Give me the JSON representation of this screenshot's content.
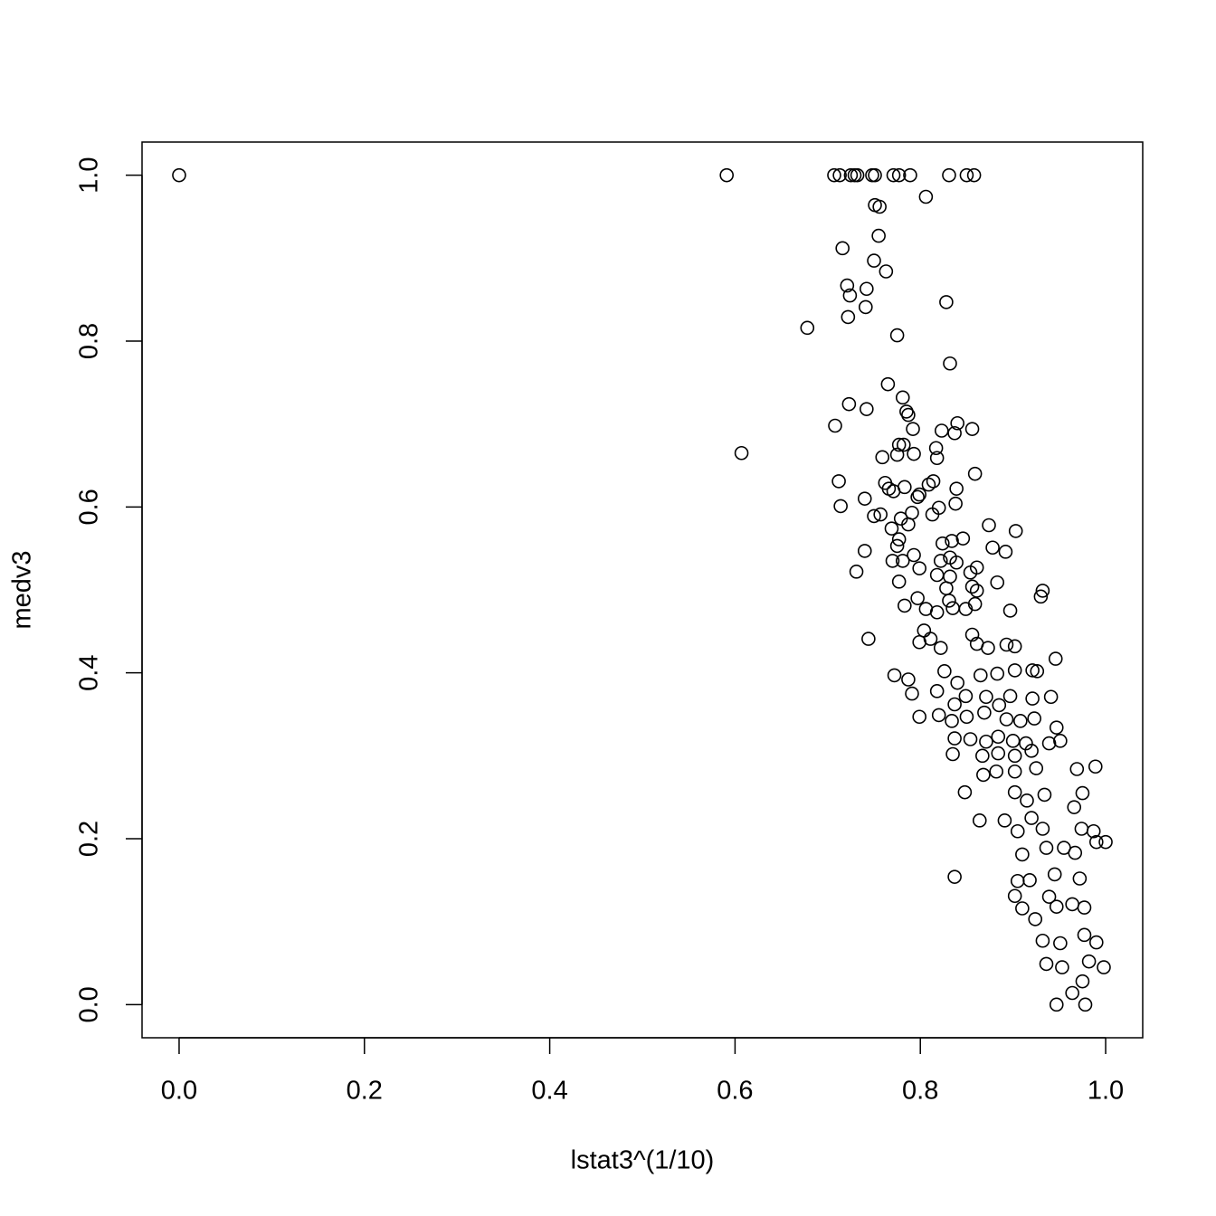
{
  "chart_data": {
    "type": "scatter",
    "x_label": "lstat3^(1/10)",
    "y_label": "medv3",
    "xlim": [
      -0.04,
      1.04
    ],
    "ylim": [
      -0.04,
      1.04
    ],
    "xticks": [
      {
        "value": 0,
        "label": "0.0"
      },
      0.2,
      0.4,
      0.6,
      0.8,
      {
        "value": 1,
        "label": "1.0"
      }
    ],
    "yticks": [
      {
        "value": 0,
        "label": "0.0"
      },
      0.2,
      0.4,
      0.6,
      0.8,
      {
        "value": 1,
        "label": "1.0"
      }
    ],
    "color": "#000000",
    "x": [
      0,
      0.591,
      0.707,
      0.713,
      0.725,
      0.729,
      0.732,
      0.748,
      0.751,
      0.771,
      0.777,
      0.789,
      0.831,
      0.85,
      0.858,
      0.806,
      0.751,
      0.756,
      0.755,
      0.716,
      0.75,
      0.763,
      0.721,
      0.724,
      0.742,
      0.828,
      0.741,
      0.722,
      0.678,
      0.775,
      0.832,
      0.765,
      0.781,
      0.723,
      0.742,
      0.785,
      0.787,
      0.84,
      0.856,
      0.837,
      0.708,
      0.792,
      0.823,
      0.777,
      0.782,
      0.817,
      0.607,
      0.775,
      0.793,
      0.759,
      0.818,
      0.859,
      0.814,
      0.809,
      0.762,
      0.712,
      0.839,
      0.766,
      0.771,
      0.783,
      0.799,
      0.797,
      0.838,
      0.74,
      0.714,
      0.82,
      0.791,
      0.813,
      0.75,
      0.757,
      0.779,
      0.874,
      0.903,
      0.787,
      0.769,
      0.834,
      0.824,
      0.846,
      0.775,
      0.777,
      0.878,
      0.892,
      0.74,
      0.793,
      0.832,
      0.822,
      0.839,
      0.77,
      0.781,
      0.861,
      0.854,
      0.799,
      0.818,
      0.832,
      0.731,
      0.883,
      0.777,
      0.856,
      0.932,
      0.93,
      0.828,
      0.861,
      0.831,
      0.859,
      0.797,
      0.835,
      0.818,
      0.849,
      0.897,
      0.783,
      0.806,
      0.744,
      0.946,
      0.804,
      0.799,
      0.811,
      0.822,
      0.856,
      0.861,
      0.873,
      0.893,
      0.902,
      0.772,
      0.787,
      0.826,
      0.84,
      0.865,
      0.883,
      0.902,
      0.921,
      0.926,
      0.791,
      0.818,
      0.837,
      0.849,
      0.871,
      0.885,
      0.897,
      0.941,
      0.921,
      0.799,
      0.82,
      0.834,
      0.85,
      0.869,
      0.893,
      0.908,
      0.923,
      0.947,
      0.837,
      0.854,
      0.871,
      0.884,
      0.9,
      0.914,
      0.939,
      0.951,
      0.835,
      0.867,
      0.884,
      0.902,
      0.92,
      0.868,
      0.882,
      0.902,
      0.925,
      0.969,
      0.989,
      0.902,
      0.915,
      0.934,
      0.848,
      0.975,
      0.966,
      0.864,
      0.891,
      0.905,
      0.92,
      0.932,
      0.974,
      0.987,
      0.99,
      1.0,
      0.91,
      0.936,
      0.955,
      0.967,
      0.837,
      0.905,
      0.918,
      0.945,
      0.972,
      0.902,
      0.939,
      0.91,
      0.947,
      0.964,
      0.977,
      0.924,
      0.932,
      0.951,
      0.977,
      0.99,
      0.936,
      0.953,
      0.982,
      0.998,
      0.975,
      0.964,
      0.947,
      0.978
    ],
    "y": [
      1,
      1,
      1,
      1,
      1,
      1,
      1,
      1,
      1,
      1,
      1,
      1,
      1,
      1,
      1,
      0.974,
      0.964,
      0.962,
      0.927,
      0.912,
      0.897,
      0.884,
      0.867,
      0.855,
      0.863,
      0.847,
      0.841,
      0.829,
      0.816,
      0.807,
      0.773,
      0.748,
      0.732,
      0.724,
      0.718,
      0.715,
      0.711,
      0.701,
      0.694,
      0.689,
      0.698,
      0.694,
      0.692,
      0.675,
      0.675,
      0.671,
      0.665,
      0.663,
      0.664,
      0.66,
      0.659,
      0.64,
      0.631,
      0.627,
      0.629,
      0.631,
      0.622,
      0.622,
      0.619,
      0.624,
      0.615,
      0.612,
      0.604,
      0.61,
      0.601,
      0.599,
      0.593,
      0.591,
      0.589,
      0.591,
      0.586,
      0.578,
      0.571,
      0.579,
      0.574,
      0.559,
      0.556,
      0.562,
      0.553,
      0.561,
      0.551,
      0.546,
      0.547,
      0.542,
      0.539,
      0.535,
      0.533,
      0.535,
      0.535,
      0.527,
      0.521,
      0.526,
      0.518,
      0.516,
      0.522,
      0.509,
      0.51,
      0.504,
      0.499,
      0.492,
      0.502,
      0.499,
      0.487,
      0.483,
      0.49,
      0.478,
      0.473,
      0.477,
      0.475,
      0.481,
      0.477,
      0.441,
      0.417,
      0.451,
      0.437,
      0.441,
      0.43,
      0.446,
      0.435,
      0.43,
      0.434,
      0.432,
      0.397,
      0.392,
      0.402,
      0.388,
      0.397,
      0.399,
      0.403,
      0.403,
      0.402,
      0.375,
      0.378,
      0.362,
      0.372,
      0.371,
      0.361,
      0.372,
      0.371,
      0.369,
      0.347,
      0.349,
      0.342,
      0.347,
      0.352,
      0.344,
      0.342,
      0.345,
      0.334,
      0.321,
      0.32,
      0.317,
      0.323,
      0.318,
      0.315,
      0.315,
      0.318,
      0.302,
      0.3,
      0.303,
      0.3,
      0.306,
      0.277,
      0.281,
      0.281,
      0.285,
      0.284,
      0.287,
      0.256,
      0.246,
      0.253,
      0.256,
      0.255,
      0.238,
      0.222,
      0.222,
      0.209,
      0.225,
      0.212,
      0.212,
      0.209,
      0.196,
      0.196,
      0.181,
      0.189,
      0.189,
      0.183,
      0.154,
      0.149,
      0.15,
      0.157,
      0.152,
      0.131,
      0.13,
      0.116,
      0.118,
      0.121,
      0.117,
      0.103,
      0.077,
      0.074,
      0.084,
      0.075,
      0.049,
      0.045,
      0.052,
      0.045,
      0.028,
      0.014,
      0,
      0
    ]
  }
}
